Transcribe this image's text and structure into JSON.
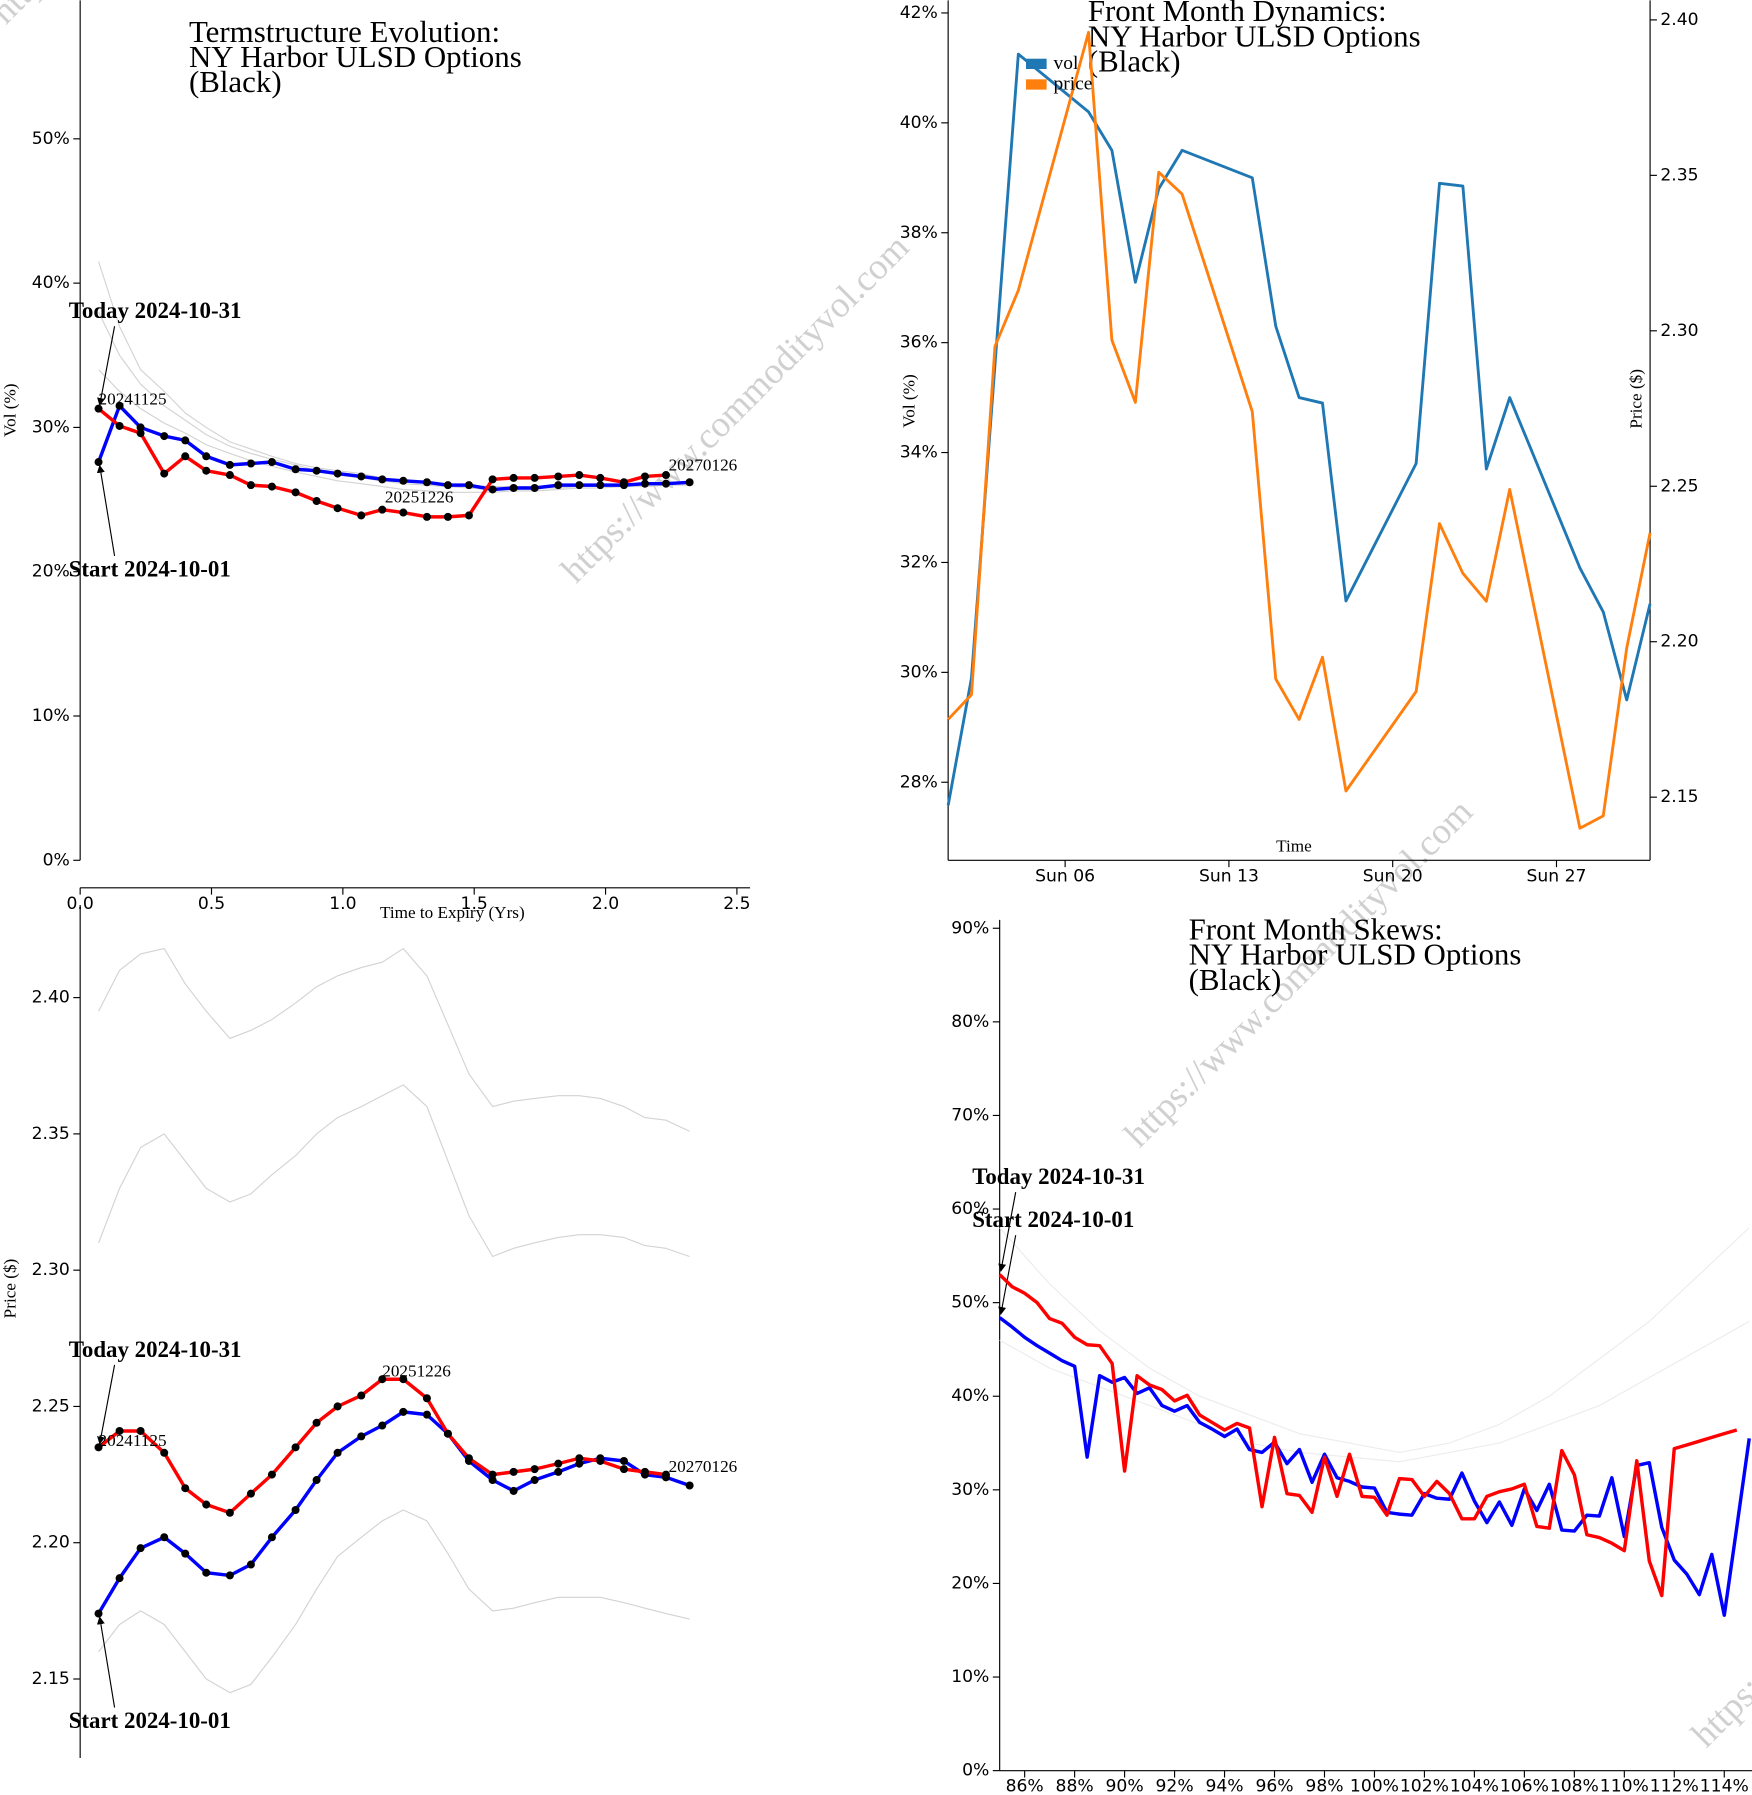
{
  "watermark": "https://www.commodityvol.com",
  "chart_data": [
    {
      "type": "line",
      "title": [
        "Termstructure Evolution:",
        "NY Harbor ULSD Options",
        "(Black)"
      ],
      "xlabel": "Time to Expiry (Yrs)",
      "ylabel": "Vol (%)",
      "xlim": [
        0,
        2.55
      ],
      "ylim": [
        0,
        59.6
      ],
      "xticks": [
        {
          "value": 0,
          "label": "0.0"
        },
        0.5,
        {
          "value": 1,
          "label": "1.0"
        },
        1.5,
        {
          "value": 2,
          "label": "2.0"
        },
        2.5
      ],
      "yticks": [
        {
          "value": 0,
          "label": "0%"
        },
        {
          "value": 10,
          "label": "10%"
        },
        {
          "value": 20,
          "label": "20%"
        },
        {
          "value": 30,
          "label": "30%"
        },
        {
          "value": 40,
          "label": "40%"
        },
        {
          "value": 50,
          "label": "50%"
        }
      ],
      "grid": false,
      "legend": false,
      "x": [
        0.07,
        0.15,
        0.23,
        0.32,
        0.4,
        0.48,
        0.57,
        0.65,
        0.73,
        0.82,
        0.9,
        0.98,
        1.07,
        1.15,
        1.23,
        1.32,
        1.4,
        1.48,
        1.57,
        1.65,
        1.73,
        1.82,
        1.9,
        1.98,
        2.07,
        2.15,
        2.23,
        2.32
      ],
      "series": [
        {
          "color": "#d3d3d3",
          "values": [
            41.5,
            37,
            34,
            32.5,
            31,
            30,
            29,
            28.5,
            28,
            27.5,
            27.2,
            27,
            26.8,
            26.5,
            26.3,
            26.2,
            26.1,
            26,
            25.9,
            25.9,
            25.9,
            26,
            26,
            26,
            26.1,
            26.1,
            26.2,
            26.2
          ]
        },
        {
          "color": "#d3d3d3",
          "values": [
            38,
            35,
            33,
            31.5,
            30.5,
            29.5,
            28.7,
            28.2,
            27.8,
            27.4,
            27,
            26.7,
            26.5,
            26.3,
            26.1,
            26,
            25.9,
            25.8,
            25.7,
            25.7,
            25.8,
            25.8,
            25.9,
            25.9,
            26,
            26,
            26.1,
            26.1
          ]
        },
        {
          "color": "#d3d3d3",
          "values": [
            34,
            32.5,
            31.3,
            30.3,
            29.6,
            28.8,
            28.2,
            27.7,
            27.3,
            26.9,
            26.6,
            26.3,
            26.1,
            25.9,
            25.7,
            25.6,
            25.5,
            25.5,
            25.5,
            25.6,
            25.6,
            25.7,
            25.8,
            25.8,
            25.9,
            25.9,
            26,
            26
          ]
        },
        {
          "name": "Start 2024-10-01",
          "color": "#0000ff",
          "markers": true,
          "values": [
            27.6,
            31.5,
            30.0,
            29.4,
            29.1,
            28.0,
            27.4,
            27.5,
            27.6,
            27.1,
            27.0,
            26.8,
            26.6,
            26.4,
            26.3,
            26.2,
            26.0,
            26.0,
            25.7,
            25.8,
            25.8,
            26.0,
            26.0,
            26.0,
            26.0,
            26.1,
            26.1,
            26.2
          ]
        },
        {
          "name": "Today 2024-10-31",
          "color": "#ff0000",
          "markers": true,
          "x": [
            0.07,
            0.15,
            0.23,
            0.32,
            0.4,
            0.48,
            0.57,
            0.65,
            0.73,
            0.82,
            0.9,
            0.98,
            1.07,
            1.15,
            1.23,
            1.32,
            1.4,
            1.48,
            1.57,
            1.65,
            1.73,
            1.82,
            1.9,
            1.98,
            2.07,
            2.15,
            2.23
          ],
          "values": [
            31.3,
            30.1,
            29.6,
            26.8,
            28.0,
            27.0,
            26.7,
            26.0,
            25.9,
            25.5,
            24.9,
            24.4,
            23.9,
            24.3,
            24.1,
            23.8,
            23.8,
            23.9,
            26.4,
            26.5,
            26.5,
            26.6,
            26.7,
            26.5,
            26.2,
            26.6,
            26.7
          ]
        }
      ],
      "annotations": [
        {
          "text": "20241125",
          "x": 0.07,
          "y": 31.6
        },
        {
          "text": "20251226",
          "x": 1.16,
          "y": 24.8
        },
        {
          "text": "20270126",
          "x": 2.24,
          "y": 27.0
        }
      ]
    },
    {
      "type": "line",
      "title": [
        "Front Month Dynamics:",
        "NY Harbor ULSD Options",
        "(Black)"
      ],
      "xlabel": "Time",
      "ylabel": "Vol (%)",
      "y2label": "Price ($)",
      "xlim": [
        1,
        31
      ],
      "ylim": [
        26.58,
        42.23
      ],
      "y2lim": [
        2.1297,
        2.4063
      ],
      "xticks": [
        {
          "value": 6,
          "label": "Sun 06"
        },
        {
          "value": 13,
          "label": "Sun 13"
        },
        {
          "value": 20,
          "label": "Sun 20"
        },
        {
          "value": 27,
          "label": "Sun 27"
        }
      ],
      "yticks": [
        {
          "value": 28,
          "label": "28%"
        },
        {
          "value": 30,
          "label": "30%"
        },
        {
          "value": 32,
          "label": "32%"
        },
        {
          "value": 34,
          "label": "34%"
        },
        {
          "value": 36,
          "label": "36%"
        },
        {
          "value": 38,
          "label": "38%"
        },
        {
          "value": 40,
          "label": "40%"
        },
        {
          "value": 42,
          "label": "42%"
        }
      ],
      "y2ticks": [
        2.15,
        {
          "value": 2.2,
          "label": "2.20"
        },
        2.25,
        {
          "value": 2.3,
          "label": "2.30"
        },
        2.35,
        {
          "value": 2.4,
          "label": "2.40"
        }
      ],
      "grid": false,
      "legend": "top-left",
      "x": [
        1,
        2,
        3,
        4,
        7,
        8,
        9,
        10,
        11,
        14,
        15,
        16,
        17,
        18,
        21,
        22,
        23,
        24,
        25,
        28,
        29,
        30,
        31
      ],
      "series": [
        {
          "name": "vol",
          "color": "#1f77b4",
          "values": [
            27.58,
            29.9,
            35.6,
            41.25,
            40.2,
            39.5,
            37.1,
            38.8,
            39.5,
            39.0,
            36.3,
            35.0,
            34.9,
            31.3,
            33.8,
            38.9,
            38.85,
            33.7,
            35.0,
            31.9,
            31.1,
            29.5,
            31.25
          ]
        },
        {
          "name": "price",
          "color": "#ff7f0e",
          "axis": "y2",
          "values": [
            2.175,
            2.183,
            2.295,
            2.313,
            2.396,
            2.297,
            2.277,
            2.351,
            2.344,
            2.274,
            2.188,
            2.175,
            2.195,
            2.152,
            2.184,
            2.238,
            2.222,
            2.213,
            2.249,
            2.14,
            2.144,
            2.198,
            2.235
          ]
        }
      ]
    },
    {
      "type": "line",
      "ylabel": "Price ($)",
      "xlim": [
        0,
        2.55
      ],
      "ylim": [
        2.121,
        2.434
      ],
      "yticks": [
        2.15,
        {
          "value": 2.2,
          "label": "2.20"
        },
        2.25,
        {
          "value": 2.3,
          "label": "2.30"
        },
        2.35,
        {
          "value": 2.4,
          "label": "2.40"
        }
      ],
      "grid": false,
      "legend": false,
      "x": [
        0.07,
        0.15,
        0.23,
        0.32,
        0.4,
        0.48,
        0.57,
        0.65,
        0.73,
        0.82,
        0.9,
        0.98,
        1.07,
        1.15,
        1.23,
        1.32,
        1.4,
        1.48,
        1.57,
        1.65,
        1.73,
        1.82,
        1.9,
        1.98,
        2.07,
        2.15,
        2.23,
        2.32
      ],
      "series": [
        {
          "color": "#d3d3d3",
          "values": [
            2.395,
            2.41,
            2.416,
            2.418,
            2.405,
            2.395,
            2.385,
            2.388,
            2.392,
            2.398,
            2.404,
            2.408,
            2.411,
            2.413,
            2.418,
            2.408,
            2.39,
            2.372,
            2.36,
            2.362,
            2.363,
            2.364,
            2.364,
            2.363,
            2.36,
            2.356,
            2.355,
            2.351
          ]
        },
        {
          "color": "#d3d3d3",
          "values": [
            2.31,
            2.33,
            2.345,
            2.35,
            2.34,
            2.33,
            2.325,
            2.328,
            2.335,
            2.342,
            2.35,
            2.356,
            2.36,
            2.364,
            2.368,
            2.36,
            2.34,
            2.32,
            2.305,
            2.308,
            2.31,
            2.312,
            2.313,
            2.313,
            2.312,
            2.309,
            2.308,
            2.305
          ]
        },
        {
          "color": "#d3d3d3",
          "values": [
            2.16,
            2.17,
            2.175,
            2.17,
            2.16,
            2.15,
            2.145,
            2.148,
            2.158,
            2.17,
            2.183,
            2.195,
            2.202,
            2.208,
            2.212,
            2.208,
            2.196,
            2.183,
            2.175,
            2.176,
            2.178,
            2.18,
            2.18,
            2.18,
            2.178,
            2.176,
            2.174,
            2.172
          ]
        },
        {
          "name": "Start 2024-10-01",
          "color": "#0000ff",
          "markers": true,
          "values": [
            2.174,
            2.187,
            2.198,
            2.202,
            2.196,
            2.189,
            2.188,
            2.192,
            2.202,
            2.212,
            2.223,
            2.233,
            2.239,
            2.243,
            2.248,
            2.247,
            2.24,
            2.23,
            2.223,
            2.219,
            2.223,
            2.226,
            2.229,
            2.231,
            2.23,
            2.225,
            2.224,
            2.221
          ]
        },
        {
          "name": "Today 2024-10-31",
          "color": "#ff0000",
          "markers": true,
          "x": [
            0.07,
            0.15,
            0.23,
            0.32,
            0.4,
            0.48,
            0.57,
            0.65,
            0.73,
            0.82,
            0.9,
            0.98,
            1.07,
            1.15,
            1.23,
            1.32,
            1.4,
            1.48,
            1.57,
            1.65,
            1.73,
            1.82,
            1.9,
            1.98,
            2.07,
            2.15,
            2.23
          ],
          "values": [
            2.235,
            2.241,
            2.241,
            2.233,
            2.22,
            2.214,
            2.211,
            2.218,
            2.225,
            2.235,
            2.244,
            2.25,
            2.254,
            2.26,
            2.26,
            2.253,
            2.24,
            2.231,
            2.225,
            2.226,
            2.227,
            2.229,
            2.231,
            2.23,
            2.227,
            2.226,
            2.225
          ]
        }
      ],
      "annotations": [
        {
          "text": "20241125",
          "x": 0.07,
          "y": 2.2355
        },
        {
          "text": "20251226",
          "x": 1.15,
          "y": 2.261
        },
        {
          "text": "20270126",
          "x": 2.24,
          "y": 2.226
        }
      ]
    },
    {
      "type": "line",
      "title": [
        "Front Month Skews:",
        "NY Harbor ULSD Options",
        "(Black)"
      ],
      "xlim": [
        85,
        115
      ],
      "ylim": [
        0,
        90.9
      ],
      "xticks": [
        {
          "value": 86,
          "label": "86%"
        },
        {
          "value": 88,
          "label": "88%"
        },
        {
          "value": 90,
          "label": "90%"
        },
        {
          "value": 92,
          "label": "92%"
        },
        {
          "value": 94,
          "label": "94%"
        },
        {
          "value": 96,
          "label": "96%"
        },
        {
          "value": 98,
          "label": "98%"
        },
        {
          "value": 100,
          "label": "100%"
        },
        {
          "value": 102,
          "label": "102%"
        },
        {
          "value": 104,
          "label": "104%"
        },
        {
          "value": 106,
          "label": "106%"
        },
        {
          "value": 108,
          "label": "108%"
        },
        {
          "value": 110,
          "label": "110%"
        },
        {
          "value": 112,
          "label": "112%"
        },
        {
          "value": 114,
          "label": "114%"
        }
      ],
      "yticks": [
        {
          "value": 0,
          "label": "0%"
        },
        {
          "value": 10,
          "label": "10%"
        },
        {
          "value": 20,
          "label": "20%"
        },
        {
          "value": 30,
          "label": "30%"
        },
        {
          "value": 40,
          "label": "40%"
        },
        {
          "value": 50,
          "label": "50%"
        },
        {
          "value": 60,
          "label": "60%"
        },
        {
          "value": 70,
          "label": "70%"
        },
        {
          "value": 80,
          "label": "80%"
        },
        {
          "value": 90,
          "label": "90%"
        }
      ],
      "grid": false,
      "legend": false,
      "x": [
        85,
        85.5,
        86,
        86.5,
        87,
        87.5,
        88,
        88.5,
        89,
        89.5,
        90,
        90.5,
        91,
        91.5,
        92,
        92.5,
        93,
        93.5,
        94,
        94.5,
        95,
        95.5,
        96,
        96.5,
        97,
        97.5,
        98,
        98.5,
        99,
        99.5,
        100,
        100.5,
        101,
        101.5,
        102,
        102.5,
        103,
        103.5,
        104,
        104.5,
        105,
        105.5,
        106,
        106.5,
        107,
        107.5,
        108,
        108.5,
        109,
        109.5,
        110,
        110.5,
        111,
        111.5,
        112,
        112.5,
        113,
        113.5,
        114,
        114.5,
        115
      ],
      "series": [
        {
          "color": "#ececec",
          "x": [
            85,
            87,
            89,
            91,
            93,
            95,
            97,
            99,
            101,
            103,
            105,
            107,
            109,
            111,
            113,
            115
          ],
          "values": [
            46,
            43,
            41,
            39,
            37,
            35,
            34,
            33.5,
            33,
            34,
            35,
            37,
            39,
            42,
            45,
            48
          ]
        },
        {
          "color": "#ececec",
          "x": [
            85,
            87,
            89,
            91,
            93,
            95,
            97,
            99,
            101,
            103,
            105,
            107,
            109,
            111,
            113,
            115
          ],
          "values": [
            58,
            52,
            47,
            43,
            40,
            38,
            36,
            35,
            34,
            35,
            37,
            40,
            44,
            48,
            53,
            58
          ]
        },
        {
          "name": "Start 2024-10-01",
          "color": "#0000ff",
          "values": [
            48.4,
            47.4,
            46.3,
            45.4,
            44.6,
            43.8,
            43.2,
            33.5,
            42.2,
            41.5,
            42.0,
            40.3,
            40.9,
            39.0,
            38.4,
            39.0,
            37.2,
            36.5,
            35.7,
            36.5,
            34.3,
            34.0,
            35.1,
            32.8,
            34.3,
            30.8,
            33.8,
            31.3,
            30.9,
            30.3,
            30.2,
            27.6,
            27.4,
            27.3,
            29.6,
            29.1,
            29.0,
            31.8,
            28.8,
            26.5,
            28.7,
            26.2,
            30.1,
            27.8,
            30.6,
            25.7,
            25.6,
            27.3,
            27.2,
            31.3,
            25.0,
            32.6,
            32.9,
            26.0,
            22.5,
            21.0,
            18.8,
            23.1,
            16.6,
            26.0,
            35.5
          ]
        },
        {
          "name": "Today 2024-10-31",
          "color": "#ff0000",
          "values": [
            53.0,
            51.7,
            51.0,
            50.0,
            48.3,
            47.8,
            46.3,
            45.5,
            45.4,
            43.5,
            32.0,
            42.2,
            41.2,
            40.7,
            39.5,
            40.1,
            38.0,
            37.2,
            36.4,
            37.1,
            36.6,
            28.2,
            35.6,
            29.6,
            29.4,
            27.6,
            33.5,
            29.3,
            33.8,
            29.3,
            29.2,
            27.3,
            31.2,
            31.1,
            29.3,
            30.9,
            29.6,
            26.9,
            26.9,
            29.3,
            29.8,
            30.1,
            30.6,
            26.1,
            25.9,
            34.2,
            31.6,
            25.2,
            24.9,
            24.3,
            23.5,
            33.1,
            22.4,
            18.7,
            34.4,
            34.8,
            35.2,
            35.6,
            36.0,
            36.4,
            null
          ]
        }
      ]
    }
  ]
}
